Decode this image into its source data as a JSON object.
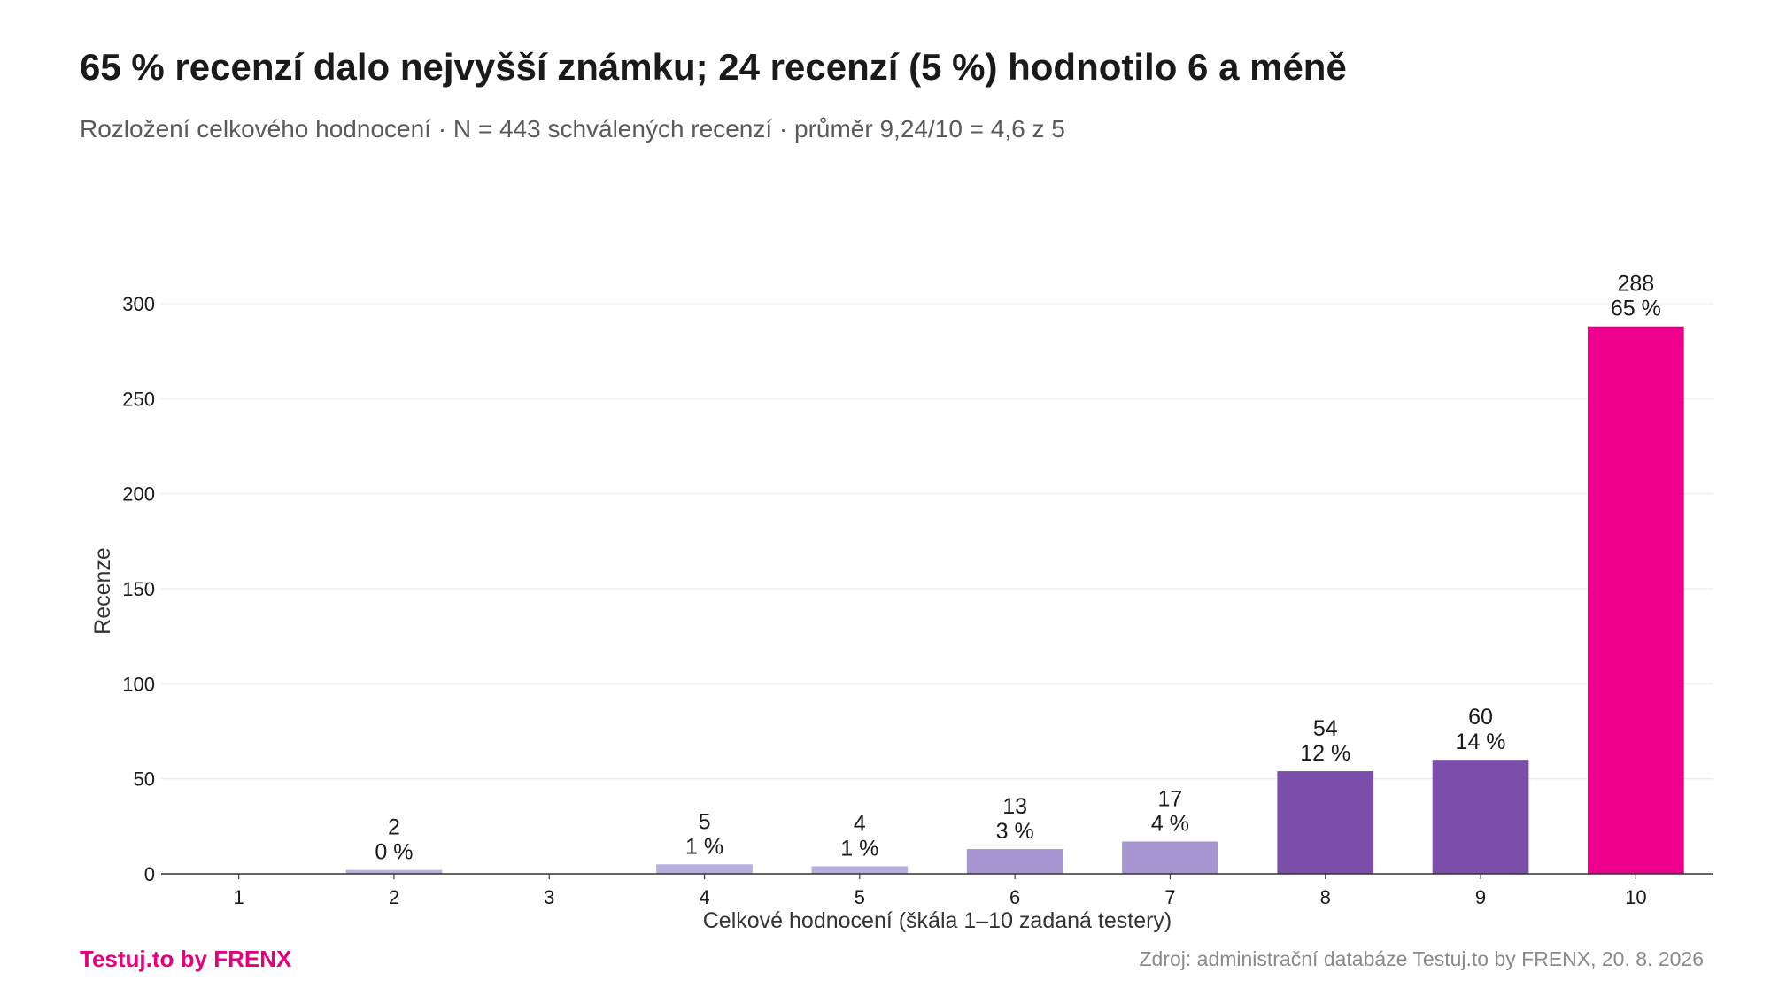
{
  "header": {
    "title": "65 % recenzí dalo nejvyšší známku; 24 recenzí (5 %) hodnotilo 6 a méně",
    "subtitle": "Rozložení celkového hodnocení · N = 443 schválených recenzí · průměr 9,24/10 = 4,6 z 5"
  },
  "footer": {
    "brand": "Testuj.to by FRENX",
    "source": "Zdroj: administrační databáze Testuj.to by FRENX, 20. 8. 2026"
  },
  "chart_data": {
    "type": "bar",
    "title": "65 % recenzí dalo nejvyšší známku; 24 recenzí (5 %) hodnotilo 6 a méně",
    "subtitle": "Rozložení celkového hodnocení · N = 443 schválených recenzí · průměr 9,24/10 = 4,6 z 5",
    "xlabel": "Celkové hodnocení (škála 1–10 zadaná testery)",
    "ylabel": "Recenze",
    "categories": [
      "1",
      "2",
      "3",
      "4",
      "5",
      "6",
      "7",
      "8",
      "9",
      "10"
    ],
    "values": [
      0,
      2,
      0,
      5,
      4,
      13,
      17,
      54,
      60,
      288
    ],
    "percent_labels": [
      "",
      "0 %",
      "",
      "1 %",
      "1 %",
      "3 %",
      "4 %",
      "12 %",
      "14 %",
      "65 %"
    ],
    "ylim": [
      0,
      320
    ],
    "yticks": [
      0,
      50,
      100,
      150,
      200,
      250,
      300
    ],
    "grid": true,
    "legend": "none",
    "colors": {
      "low": "#b8aee0",
      "mid": "#a795d2",
      "high": "#7b4fa9",
      "top": "#ec008c"
    },
    "bar_colors": [
      "#b8aee0",
      "#b8aee0",
      "#b8aee0",
      "#b8aee0",
      "#b8aee0",
      "#a795d2",
      "#a795d2",
      "#7b4fa9",
      "#7b4fa9",
      "#ec008c"
    ]
  }
}
